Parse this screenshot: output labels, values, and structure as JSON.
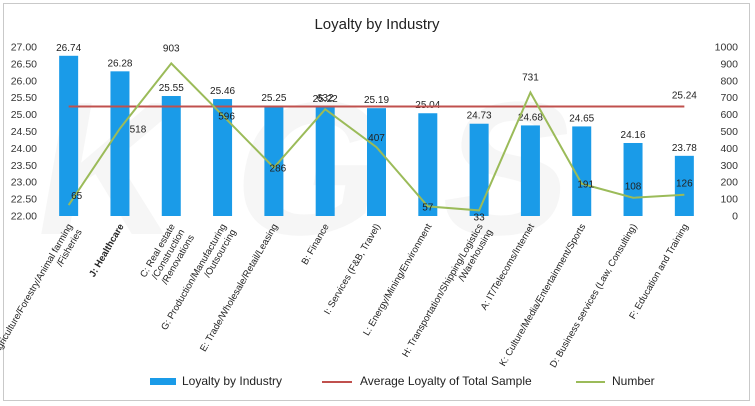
{
  "chart_data": {
    "type": "bar",
    "title": "Loyalty by Industry",
    "categories": [
      "M: Agriculture/Forestry/Animal farming /Fisheries",
      "J: Healthcare",
      "C: Real estate /Construction /Renovations",
      "G: Production/Manufacturing /Outsourcing",
      "E: Trade/Wholesale/Retail/Leasing",
      "B: Finance",
      "I: Services (F&B, Travel)",
      "L: Energy/Mining/Environment",
      "H: Transportation/Shipping/Logistics /Warehousing",
      "A: IT/Telecoms/Internet",
      "K: Culture/Media/Entertainment/Sports",
      "D: Business services (Law, Consulting)",
      "F: Education and Training"
    ],
    "series": [
      {
        "name": "Loyalty by Industry",
        "type": "bar",
        "axis": "left",
        "values": [
          26.74,
          26.28,
          25.55,
          25.46,
          25.25,
          25.22,
          25.19,
          25.04,
          24.73,
          24.68,
          24.65,
          24.16,
          23.78
        ],
        "labels": [
          "26.74",
          "26.28",
          "25.55",
          "25.46",
          "25.25",
          "25.22",
          "25.19",
          "25.04",
          "24.73",
          "24.68",
          "24.65",
          "24.16",
          "23.78"
        ]
      },
      {
        "name": "Average Loyalty of Total Sample",
        "type": "line",
        "axis": "left",
        "value": 25.24,
        "label": "25.24"
      },
      {
        "name": "Number",
        "type": "line",
        "axis": "right",
        "values": [
          65,
          518,
          903,
          596,
          286,
          632,
          407,
          57,
          33,
          731,
          191,
          108,
          126
        ],
        "labels": [
          "65",
          "518",
          "903",
          "596",
          "286",
          "632",
          "407",
          "57",
          "33",
          "731",
          "191",
          "108",
          "126"
        ]
      }
    ],
    "y_left": {
      "min": 22.0,
      "max": 27.0,
      "step": 0.5,
      "ticks": [
        "22.00",
        "22.50",
        "23.00",
        "23.50",
        "24.00",
        "24.50",
        "25.00",
        "25.50",
        "26.00",
        "26.50",
        "27.00"
      ]
    },
    "y_right": {
      "min": 0,
      "max": 1000,
      "step": 100,
      "ticks": [
        "0",
        "100",
        "200",
        "300",
        "400",
        "500",
        "600",
        "700",
        "800",
        "900",
        "1000"
      ]
    },
    "bold_categories": [
      1
    ],
    "grid": false,
    "legend_position": "bottom",
    "colors": {
      "bar": "#1a9be8",
      "average": "#c0504d",
      "number": "#9bbb59"
    }
  }
}
